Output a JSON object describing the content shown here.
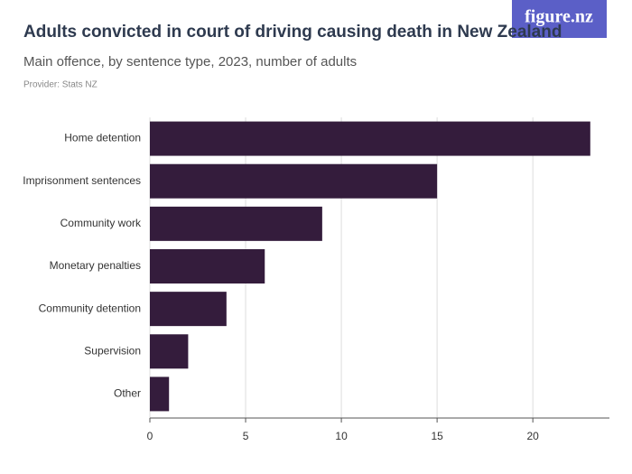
{
  "logo": "figure.nz",
  "chart_data": {
    "type": "bar",
    "orientation": "horizontal",
    "title": "Adults convicted in court of driving causing death in New Zealand",
    "subtitle": "Main offence, by sentence type, 2023, number of adults",
    "source": "Provider: Stats NZ",
    "categories": [
      "Home detention",
      "Imprisonment sentences",
      "Community work",
      "Monetary penalties",
      "Community detention",
      "Supervision",
      "Other"
    ],
    "values": [
      23,
      15,
      9,
      6,
      4,
      2,
      1
    ],
    "color": "#341c3c",
    "xlim": [
      0,
      24
    ],
    "xticks": [
      0,
      5,
      10,
      15,
      20
    ],
    "grid": true
  }
}
